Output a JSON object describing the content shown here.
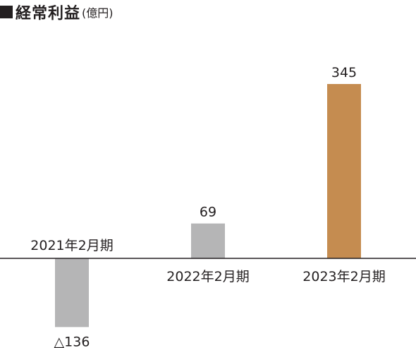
{
  "title": "経常利益",
  "unit": "(億円)",
  "chart_data": {
    "type": "bar",
    "title": "経常利益",
    "ylabel": "(億円)",
    "categories": [
      "2021年2月期",
      "2022年2月期",
      "2023年2月期"
    ],
    "values": [
      -136,
      69,
      345
    ],
    "value_labels": [
      "△136",
      "69",
      "345"
    ],
    "colors": [
      "#b5b5b6",
      "#b5b5b6",
      "#c58c50"
    ],
    "ylim": [
      -136,
      345
    ],
    "grid": false,
    "legend": "none"
  }
}
